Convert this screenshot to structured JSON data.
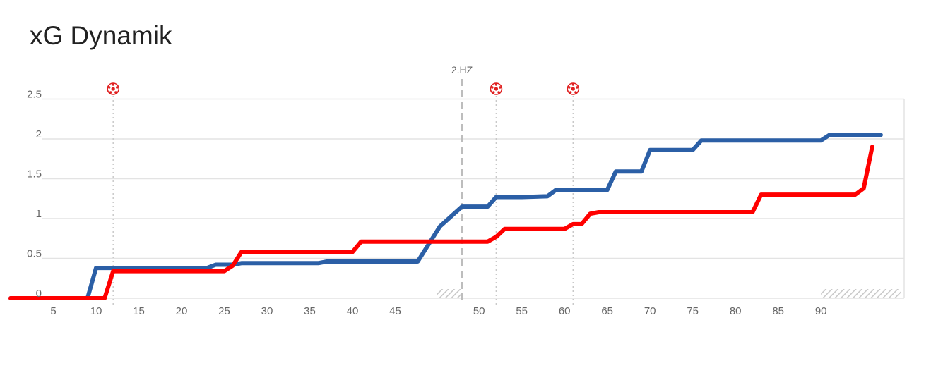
{
  "title": "xG Dynamik",
  "chart_data": {
    "type": "line",
    "title": "xG Dynamik",
    "x_ticks": [
      5,
      10,
      15,
      20,
      25,
      30,
      35,
      40,
      45,
      50,
      55,
      60,
      65,
      70,
      75,
      80,
      85,
      90
    ],
    "y_ticks": [
      "0",
      "0.5",
      "1",
      "1.5",
      "2",
      "2.5"
    ],
    "ylim": [
      0,
      2.5
    ],
    "grid": true,
    "half_time_label": "2.HZ",
    "goal_minutes": [
      12,
      52,
      61
    ],
    "goal_icon": "soccer-ball-icon",
    "series": [
      {
        "color": "#2b5fa6",
        "points": [
          [
            0,
            0
          ],
          [
            9,
            0
          ],
          [
            10,
            0.38
          ],
          [
            23,
            0.38
          ],
          [
            24,
            0.42
          ],
          [
            26,
            0.42
          ],
          [
            27,
            0.44
          ],
          [
            36,
            0.44
          ],
          [
            37,
            0.46
          ],
          [
            46,
            0.46
          ],
          [
            47,
            0.9
          ],
          [
            48,
            1.15
          ],
          [
            51,
            1.15
          ],
          [
            52,
            1.27
          ],
          [
            55,
            1.27
          ],
          [
            58,
            1.28
          ],
          [
            59,
            1.36
          ],
          [
            65,
            1.36
          ],
          [
            66,
            1.59
          ],
          [
            69,
            1.59
          ],
          [
            70,
            1.86
          ],
          [
            75,
            1.86
          ],
          [
            76,
            1.98
          ],
          [
            90,
            1.98
          ],
          [
            91,
            2.05
          ],
          [
            97,
            2.05
          ]
        ]
      },
      {
        "color": "#ff0000",
        "points": [
          [
            0,
            0
          ],
          [
            11,
            0
          ],
          [
            12,
            0.34
          ],
          [
            25,
            0.34
          ],
          [
            26,
            0.41
          ],
          [
            27,
            0.58
          ],
          [
            40,
            0.58
          ],
          [
            41,
            0.71
          ],
          [
            51,
            0.71
          ],
          [
            52,
            0.77
          ],
          [
            53,
            0.87
          ],
          [
            60,
            0.87
          ],
          [
            61,
            0.93
          ],
          [
            62,
            0.93
          ],
          [
            63,
            1.06
          ],
          [
            64,
            1.08
          ],
          [
            82,
            1.08
          ],
          [
            83,
            1.3
          ],
          [
            94,
            1.3
          ],
          [
            95,
            1.38
          ],
          [
            96,
            1.9
          ]
        ]
      }
    ]
  }
}
